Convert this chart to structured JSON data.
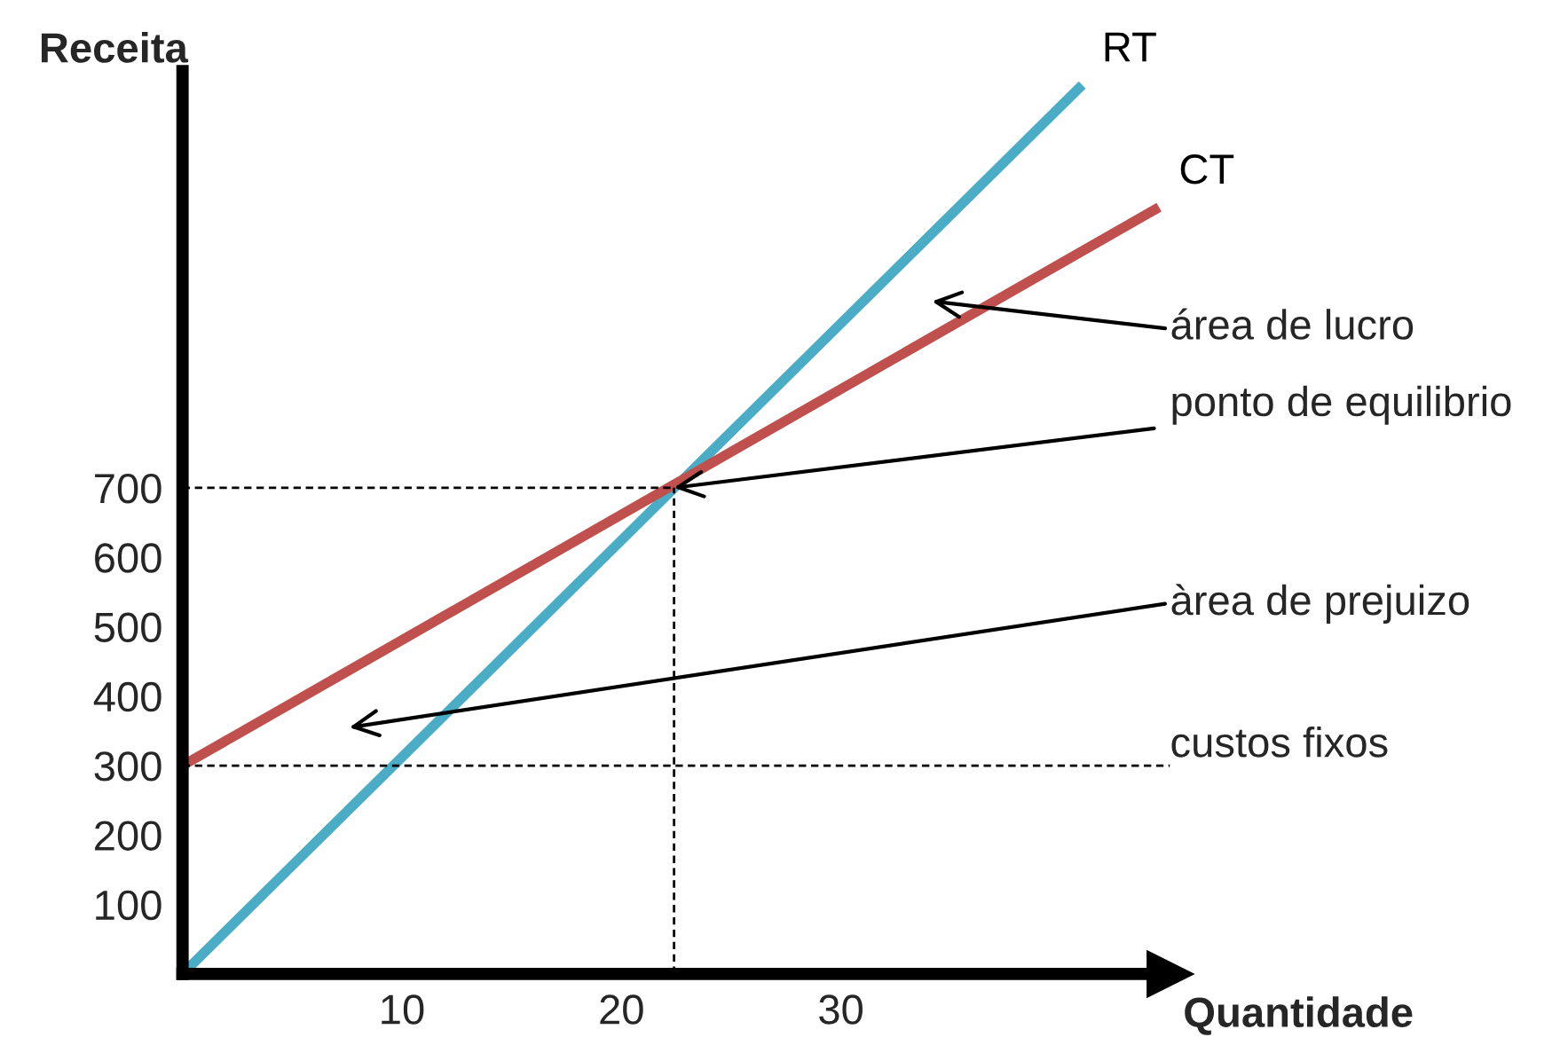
{
  "chart_data": {
    "type": "line",
    "xlabel": "Quantidade",
    "ylabel": "Receita",
    "xlim": [
      0,
      45
    ],
    "ylim": [
      0,
      1300
    ],
    "xticks": [
      10,
      20,
      30
    ],
    "yticks": [
      100,
      200,
      300,
      400,
      500,
      600,
      700
    ],
    "grid": false,
    "legend": false,
    "marker": "none",
    "series": [
      {
        "name": "RT",
        "color": "#4bacc6",
        "x": [
          0,
          41
        ],
        "values": [
          0,
          1280
        ]
      },
      {
        "name": "CT",
        "color": "#c0504d",
        "x": [
          0,
          44.5
        ],
        "values": [
          300,
          1104
        ]
      },
      {
        "color": "#000000",
        "line_style": "dashed",
        "x": [
          0,
          22.4
        ],
        "values": [
          700,
          700
        ]
      },
      {
        "color": "#000000",
        "line_style": "dashed",
        "x": [
          22.4,
          22.4
        ],
        "values": [
          0,
          700
        ]
      }
    ],
    "ref_lines": [
      {
        "axis": "y",
        "value": 300,
        "label": "custos fixos",
        "color": "#000000",
        "line_style": "dashed"
      }
    ],
    "annotations": [
      "área de lucro",
      {
        "text": "ponto de equilibrio",
        "x": 22.4,
        "y": 700
      },
      "àrea de prejuizo"
    ]
  }
}
